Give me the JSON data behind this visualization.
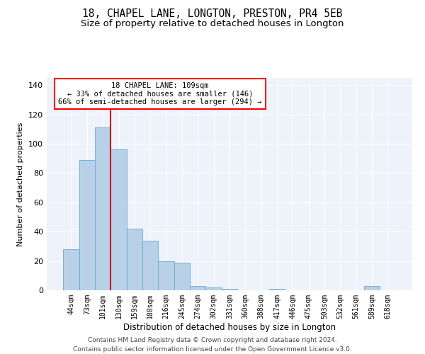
{
  "title1": "18, CHAPEL LANE, LONGTON, PRESTON, PR4 5EB",
  "title2": "Size of property relative to detached houses in Longton",
  "xlabel": "Distribution of detached houses by size in Longton",
  "ylabel": "Number of detached properties",
  "footer1": "Contains HM Land Registry data © Crown copyright and database right 2024.",
  "footer2": "Contains public sector information licensed under the Open Government Licence v3.0.",
  "annotation_line1": "18 CHAPEL LANE: 109sqm",
  "annotation_line2": "← 33% of detached houses are smaller (146)",
  "annotation_line3": "66% of semi-detached houses are larger (294) →",
  "bar_color": "#b8d0e8",
  "bar_edge_color": "#6aaad4",
  "vline_color": "#cc0000",
  "background_color": "#eef2fa",
  "grid_color": "#ffffff",
  "categories": [
    "44sqm",
    "73sqm",
    "101sqm",
    "130sqm",
    "159sqm",
    "188sqm",
    "216sqm",
    "245sqm",
    "274sqm",
    "302sqm",
    "331sqm",
    "360sqm",
    "388sqm",
    "417sqm",
    "446sqm",
    "475sqm",
    "503sqm",
    "532sqm",
    "561sqm",
    "589sqm",
    "618sqm"
  ],
  "values": [
    28,
    89,
    111,
    96,
    42,
    34,
    20,
    19,
    3,
    2,
    1,
    0,
    0,
    1,
    0,
    0,
    0,
    0,
    0,
    3,
    0
  ],
  "ylim": [
    0,
    145
  ],
  "yticks": [
    0,
    20,
    40,
    60,
    80,
    100,
    120,
    140
  ],
  "vline_x_index": 2.5,
  "title1_fontsize": 10.5,
  "title2_fontsize": 9.5,
  "xlabel_fontsize": 8.5,
  "ylabel_fontsize": 8.0,
  "tick_fontsize": 8.0,
  "xtick_fontsize": 7.0,
  "annotation_fontsize": 7.5,
  "footer_fontsize": 6.5
}
